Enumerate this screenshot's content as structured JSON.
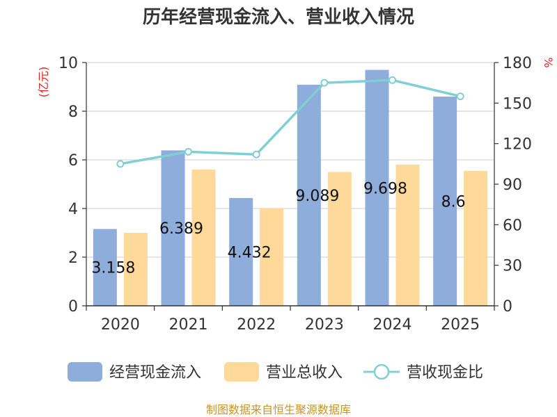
{
  "chart_data": {
    "type": "bar",
    "title": "历年经营现金流入、营业收入情况",
    "categories": [
      "2020",
      "2021",
      "2022",
      "2023",
      "2024",
      "2025"
    ],
    "series": [
      {
        "name": "经营现金流入",
        "kind": "bar",
        "axis": "left",
        "values": [
          3.158,
          6.389,
          4.432,
          9.089,
          9.698,
          8.6
        ],
        "labels": [
          "3.158",
          "6.389",
          "4.432",
          "9.089",
          "9.698",
          "8.6"
        ],
        "color": "#8eadda"
      },
      {
        "name": "营业总收入",
        "kind": "bar",
        "axis": "left",
        "values": [
          3.0,
          5.6,
          4.0,
          5.5,
          5.8,
          5.55
        ],
        "color": "#ffd999"
      },
      {
        "name": "营收现金比",
        "kind": "line",
        "axis": "right",
        "values": [
          105,
          114,
          112,
          165,
          167,
          155
        ],
        "color": "#7fd0d4"
      }
    ],
    "left_axis": {
      "unit": "(亿元)",
      "ylim": [
        0,
        10
      ],
      "ticks": [
        "0",
        "2",
        "4",
        "6",
        "8",
        "10"
      ]
    },
    "right_axis": {
      "unit": "%",
      "ylim": [
        0,
        180
      ],
      "ticks": [
        "0",
        "30",
        "60",
        "90",
        "120",
        "150",
        "180"
      ]
    },
    "grid": true,
    "legend_position": "bottom"
  },
  "source": "制图数据来自恒生聚源数据库"
}
